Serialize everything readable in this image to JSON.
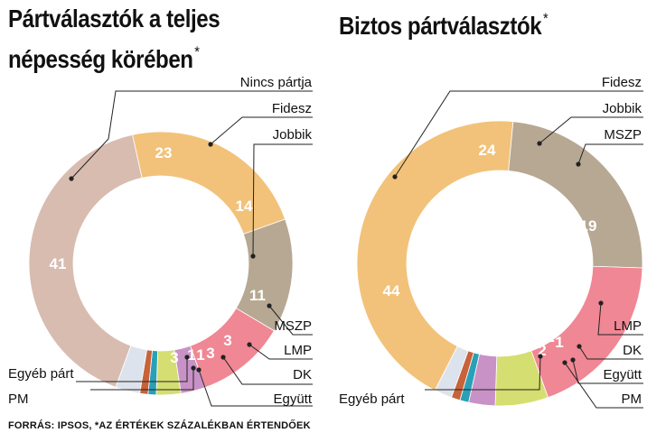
{
  "charts_meta": [
    {
      "title_line1": "Pártválasztók a teljes",
      "title_line2": "népesség körében",
      "title_mark": "*"
    },
    {
      "title_line1": "Biztos pártválasztók",
      "title_line2": "",
      "title_mark": "*"
    }
  ],
  "footer": {
    "text": "FORRÁS: IPSOS, *AZ ÉRTÉKEK SZÁZALÉKBAN ÉRTENDŐEK"
  },
  "chart_data": [
    {
      "type": "pie",
      "unit": "%",
      "title": "Pártválasztók a teljes népesség körében",
      "slices": [
        {
          "label": "Nincs pártja",
          "value": 41,
          "color": "#d8bcb0"
        },
        {
          "label": "Fidesz",
          "value": 23,
          "color": "#f2c27a"
        },
        {
          "label": "Jobbik",
          "value": 14,
          "color": "#b7a893"
        },
        {
          "label": "MSZP",
          "value": 11,
          "color": "#f08794"
        },
        {
          "label": "LMP",
          "value": 3,
          "color": "#c892c6"
        },
        {
          "label": "DK",
          "value": 3,
          "color": "#d5de70"
        },
        {
          "label": "Együtt",
          "value": 1,
          "color": "#2aa0b8"
        },
        {
          "label": "PM",
          "value": 1,
          "color": "#c8623a"
        },
        {
          "label": "Egyéb párt",
          "value": 3,
          "color": "#dde3ec"
        }
      ]
    },
    {
      "type": "pie",
      "unit": "%",
      "title": "Biztos pártválasztók",
      "slices": [
        {
          "label": "Fidesz",
          "value": 44,
          "color": "#f2c27a"
        },
        {
          "label": "Jobbik",
          "value": 24,
          "color": "#b7a893"
        },
        {
          "label": "MSZP",
          "value": 19,
          "color": "#f08794"
        },
        {
          "label": "LMP",
          "value": 6,
          "color": "#d5de70"
        },
        {
          "label": "DK",
          "value": 3,
          "color": "#c892c6"
        },
        {
          "label": "Együtt",
          "value": 1,
          "color": "#2aa0b8"
        },
        {
          "label": "PM",
          "value": 1,
          "color": "#c8623a"
        },
        {
          "label": "Egyéb párt",
          "value": 2,
          "color": "#dde3ec"
        }
      ]
    }
  ]
}
